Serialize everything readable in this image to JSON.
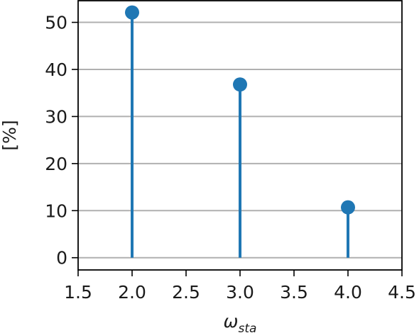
{
  "chart_data": {
    "type": "stem",
    "xlabel": "ω",
    "xlabel_sub": "sta",
    "ylabel": "[%]",
    "xlim": [
      1.5,
      4.5
    ],
    "ylim": [
      -2.6,
      54.6
    ],
    "x_ticks": [
      1.5,
      2.0,
      2.5,
      3.0,
      3.5,
      4.0,
      4.5
    ],
    "x_tick_labels": [
      "1.5",
      "2.0",
      "2.5",
      "3.0",
      "3.5",
      "4.0",
      "4.5"
    ],
    "y_ticks": [
      0,
      10,
      20,
      30,
      40,
      50
    ],
    "y_tick_labels": [
      "0",
      "10",
      "20",
      "30",
      "40",
      "50"
    ],
    "grid": "horizontal",
    "color": "#1f77b4",
    "points": [
      {
        "x": 2.0,
        "y": 52.1
      },
      {
        "x": 3.0,
        "y": 36.8
      },
      {
        "x": 4.0,
        "y": 10.7
      }
    ]
  }
}
